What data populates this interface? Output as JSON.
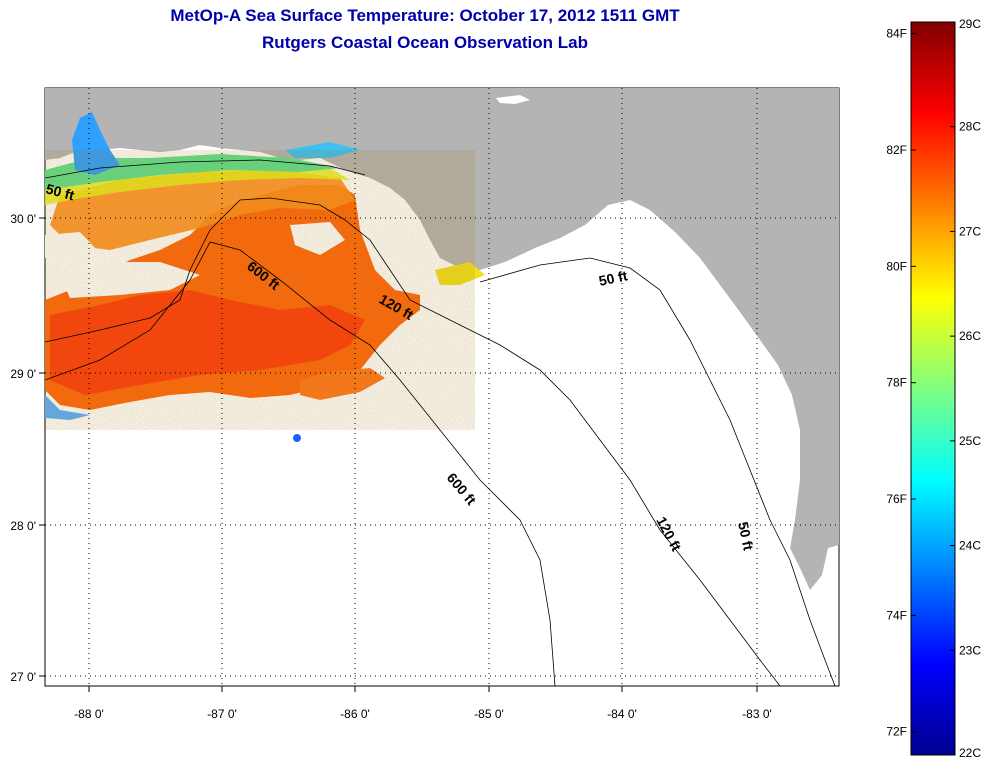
{
  "title_line1": "MetOp-A Sea Surface Temperature:  October 17, 2012 1511 GMT",
  "title_line2": "Rutgers Coastal Ocean Observation Lab",
  "map": {
    "lon_range": [
      -88.33,
      -82.45
    ],
    "lat_range": [
      26.97,
      30.85
    ],
    "lon_ticks": [
      -88,
      -87,
      -86,
      -85,
      -84,
      -83
    ],
    "lat_ticks": [
      27,
      28,
      29,
      30
    ],
    "lon_labels": [
      "-88 0'",
      "-87 0'",
      "-86 0'",
      "-85 0'",
      "-84 0'",
      "-83 0'"
    ],
    "lat_labels": [
      "27 0'",
      "28 0'",
      "29 0'",
      "30 0'"
    ],
    "grid": "dotted",
    "land_color": "#b4b4b4",
    "water_color": "#ffffff"
  },
  "contour_labels": [
    "50 ft",
    "600 ft",
    "120 ft",
    "50 ft",
    "600 ft",
    "120 ft",
    "50 ft"
  ],
  "colorbar": {
    "celsius_labels": [
      "29C",
      "28C",
      "27C",
      "26C",
      "25C",
      "24C",
      "23C",
      "22C"
    ],
    "fahrenheit_labels": [
      "84F",
      "82F",
      "80F",
      "78F",
      "76F",
      "74F",
      "72F"
    ],
    "celsius_values": [
      29,
      28,
      27,
      26,
      25,
      24,
      23,
      22
    ],
    "fahrenheit_values": [
      84,
      82,
      80,
      78,
      76,
      74,
      72
    ],
    "range_c": [
      22,
      29
    ],
    "colormap": [
      "#00008f",
      "#0000ff",
      "#0080ff",
      "#00ffff",
      "#80ff80",
      "#ffff00",
      "#ff8000",
      "#ff0000",
      "#800000"
    ]
  }
}
